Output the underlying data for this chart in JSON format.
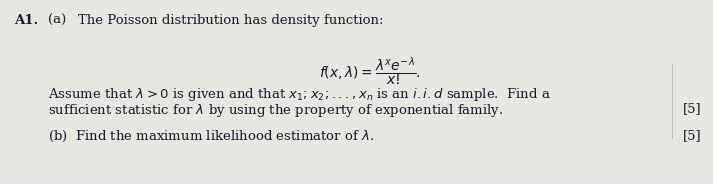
{
  "bg_color": "#e8e6e1",
  "text_color": "#1a1a2e",
  "label_A1": "A1.",
  "label_a": "(a)",
  "line1": "The Poisson distribution has density function:",
  "formula": "$f(x, \\lambda) = \\dfrac{\\lambda^x e^{-\\lambda}}{x!}.$",
  "line2a": "Assume that $\\lambda > 0$ is given and that $x_1; x_2; ..., x_n$ is an $i.i.d$ sample.  Find a",
  "line2b": "sufficient statistic for $\\lambda$ by using the property of exponential family.",
  "mark1": "[5]",
  "line3": "(b)  Find the maximum likelihood estimator of $\\lambda$.",
  "mark2": "[5]",
  "figsize": [
    7.13,
    1.84
  ],
  "dpi": 100
}
